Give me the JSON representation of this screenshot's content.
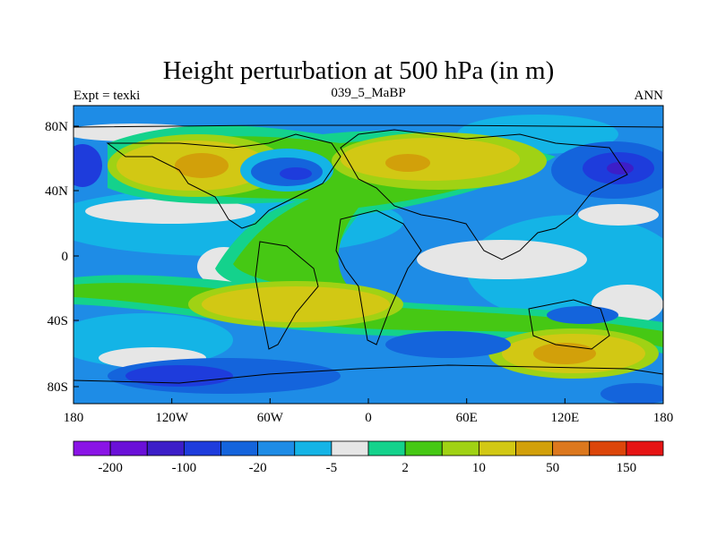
{
  "title": "Height perturbation at 500 hPa (in m)",
  "subtitle_left": "Expt = texki",
  "subtitle_center": "039_5_MaBP",
  "subtitle_right": "ANN",
  "axes": {
    "x_ticks": [
      "180",
      "120W",
      "60W",
      "0",
      "60E",
      "120E",
      "180"
    ],
    "y_ticks": [
      "80N",
      "40N",
      "0",
      "40S",
      "80S"
    ]
  },
  "colorbar": {
    "colors": [
      "#8a14e6",
      "#6a10d8",
      "#3c1ec8",
      "#1e3cdc",
      "#1464dc",
      "#1e8ce6",
      "#14b4e6",
      "#e6e6e6",
      "#14d28c",
      "#46c814",
      "#a0d214",
      "#d2c814",
      "#d2a00a",
      "#dc781e",
      "#dc460a",
      "#e61414"
    ],
    "labels": [
      {
        "text": "-200",
        "boundary": 1
      },
      {
        "text": "-100",
        "boundary": 3
      },
      {
        "text": "-20",
        "boundary": 5
      },
      {
        "text": "-5",
        "boundary": 7
      },
      {
        "text": "2",
        "boundary": 9
      },
      {
        "text": "10",
        "boundary": 11
      },
      {
        "text": "50",
        "boundary": 13
      },
      {
        "text": "150",
        "boundary": 15
      }
    ]
  }
}
